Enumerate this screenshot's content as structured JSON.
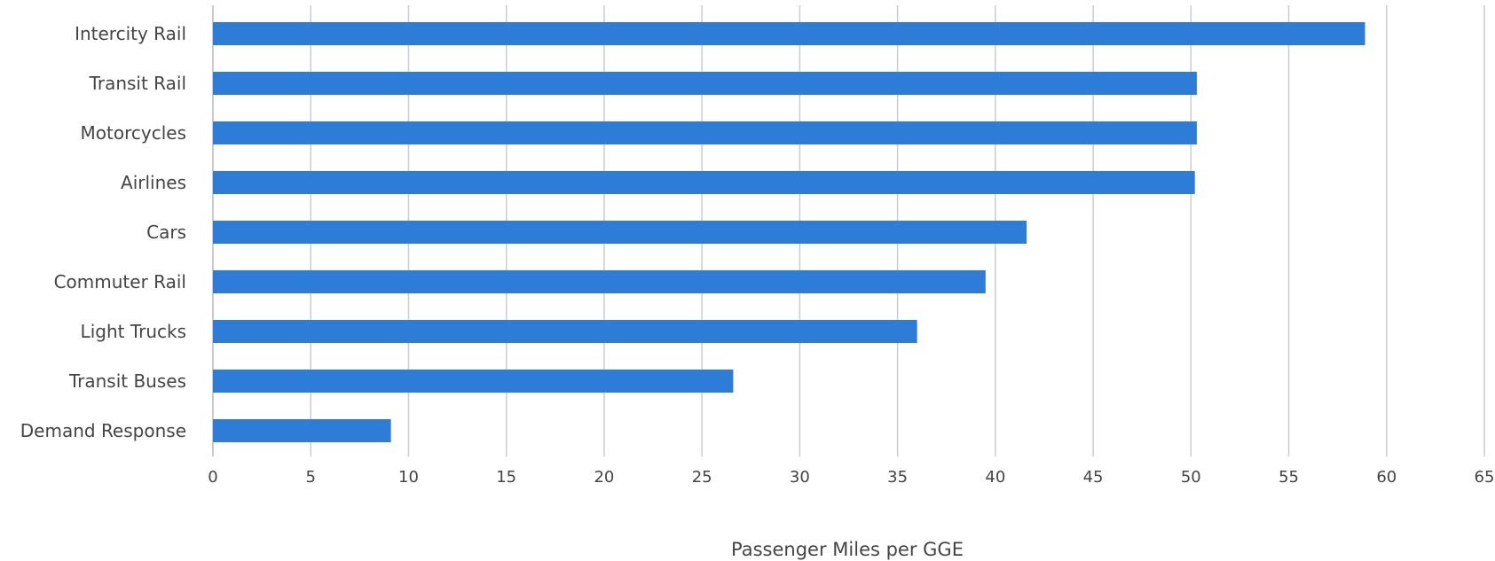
{
  "chart_data": {
    "type": "bar",
    "orientation": "horizontal",
    "title": "",
    "xlabel": "Passenger Miles per GGE",
    "ylabel": "",
    "categories": [
      "Intercity Rail",
      "Transit Rail",
      "Motorcycles",
      "Airlines",
      "Cars",
      "Commuter Rail",
      "Light Trucks",
      "Transit Buses",
      "Demand Response"
    ],
    "values": [
      58.9,
      50.3,
      50.3,
      50.2,
      41.6,
      39.5,
      36.0,
      26.6,
      9.1
    ],
    "xlim": [
      0,
      65
    ],
    "xticks": [
      "0",
      "5",
      "10",
      "15",
      "20",
      "25",
      "30",
      "35",
      "40",
      "45",
      "50",
      "55",
      "60",
      "65"
    ],
    "grid": true,
    "legend": "none",
    "bar_color": "#2d7dd8"
  }
}
